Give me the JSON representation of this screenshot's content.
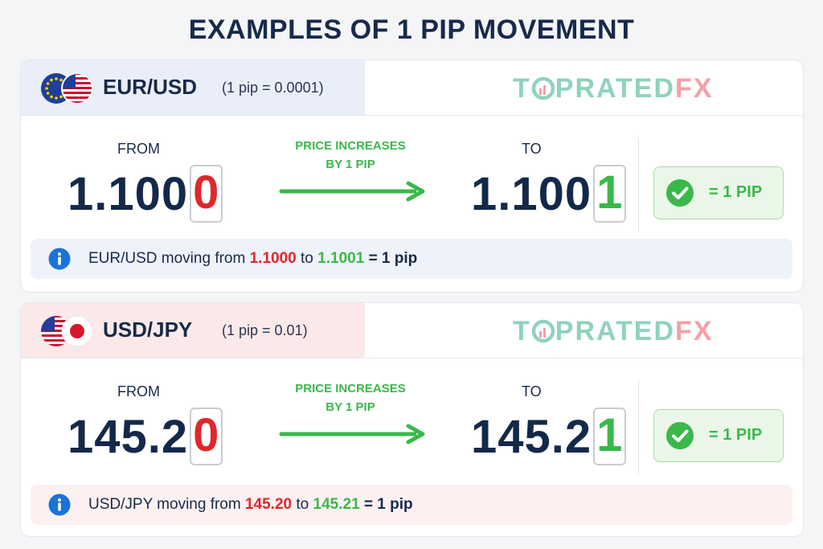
{
  "title": "EXAMPLES OF 1 PIP MOVEMENT",
  "brand": {
    "part1": "T",
    "part2": "PRATED",
    "part3": "FX",
    "color_green": "#8fd3bd",
    "color_pink": "#f4a0a8"
  },
  "colors": {
    "navy": "#172a4a",
    "red": "#e0272b",
    "green": "#3ab84a",
    "info_blue": "#1a73d9"
  },
  "examples": [
    {
      "pair": "EUR/USD",
      "pip_definition": "(1 pip = 0.0001)",
      "from_label": "FROM",
      "to_label": "TO",
      "note_line1": "PRICE INCREASES",
      "note_line2": "BY 1 PIP",
      "from_price_main": "1.100",
      "from_price_digit": "0",
      "to_price_main": "1.100",
      "to_price_digit": "1",
      "result": "= 1 PIP",
      "info_prefix": "EUR/USD moving from",
      "info_from": "1.1000",
      "info_mid": "to",
      "info_to": "1.1001",
      "info_suffix": "= 1 pip",
      "flags": [
        "eu-flag-icon",
        "us-flag-icon"
      ]
    },
    {
      "pair": "USD/JPY",
      "pip_definition": "(1 pip = 0.01)",
      "from_label": "FROM",
      "to_label": "TO",
      "note_line1": "PRICE INCREASES",
      "note_line2": "BY 1 PIP",
      "from_price_main": "145.2",
      "from_price_digit": "0",
      "to_price_main": "145.2",
      "to_price_digit": "1",
      "result": "= 1 PIP",
      "info_prefix": "USD/JPY moving from",
      "info_from": "145.20",
      "info_mid": "to",
      "info_to": "145.21",
      "info_suffix": "= 1 pip",
      "flags": [
        "us-flag-icon",
        "jp-flag-icon"
      ]
    }
  ]
}
